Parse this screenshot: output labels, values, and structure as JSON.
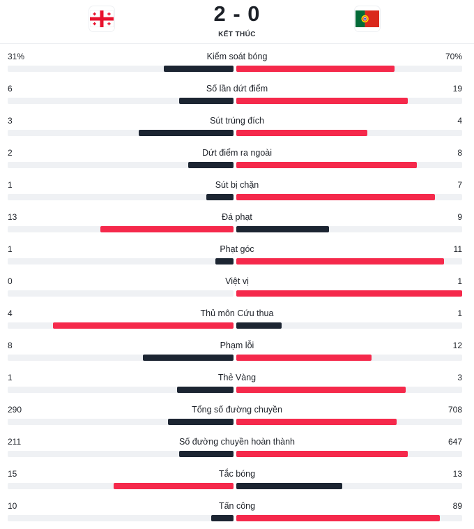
{
  "match": {
    "score": "2 - 0",
    "status": "KẾT THÚC",
    "home_flag_icon": "georgia-flag-icon",
    "away_flag_icon": "portugal-flag-icon"
  },
  "colors": {
    "leader": "#f5294b",
    "trailer": "#1c2532",
    "track": "#eff1f4"
  },
  "stats": [
    {
      "label": "Kiểm soát bóng",
      "home": "31%",
      "away": "70%",
      "home_share": 0.31,
      "away_share": 0.7
    },
    {
      "label": "Số lần dứt điểm",
      "home": "6",
      "away": "19",
      "home_share": 0.24,
      "away_share": 0.76
    },
    {
      "label": "Sút trúng đích",
      "home": "3",
      "away": "4",
      "home_share": 0.42,
      "away_share": 0.58
    },
    {
      "label": "Dứt điểm ra ngoài",
      "home": "2",
      "away": "8",
      "home_share": 0.2,
      "away_share": 0.8
    },
    {
      "label": "Sút bị chặn",
      "home": "1",
      "away": "7",
      "home_share": 0.12,
      "away_share": 0.88
    },
    {
      "label": "Đá phạt",
      "home": "13",
      "away": "9",
      "home_share": 0.59,
      "away_share": 0.41
    },
    {
      "label": "Phạt góc",
      "home": "1",
      "away": "11",
      "home_share": 0.08,
      "away_share": 0.92
    },
    {
      "label": "Việt vị",
      "home": "0",
      "away": "1",
      "home_share": 0.0,
      "away_share": 1.0
    },
    {
      "label": "Thủ môn Cứu thua",
      "home": "4",
      "away": "1",
      "home_share": 0.8,
      "away_share": 0.2
    },
    {
      "label": "Phạm lỗi",
      "home": "8",
      "away": "12",
      "home_share": 0.4,
      "away_share": 0.6
    },
    {
      "label": "Thẻ Vàng",
      "home": "1",
      "away": "3",
      "home_share": 0.25,
      "away_share": 0.75
    },
    {
      "label": "Tổng số đường chuyền",
      "home": "290",
      "away": "708",
      "home_share": 0.29,
      "away_share": 0.71
    },
    {
      "label": "Số đường chuyền hoàn thành",
      "home": "211",
      "away": "647",
      "home_share": 0.24,
      "away_share": 0.76
    },
    {
      "label": "Tắc bóng",
      "home": "15",
      "away": "13",
      "home_share": 0.53,
      "away_share": 0.47
    },
    {
      "label": "Tấn công",
      "home": "10",
      "away": "89",
      "home_share": 0.1,
      "away_share": 0.9
    }
  ]
}
